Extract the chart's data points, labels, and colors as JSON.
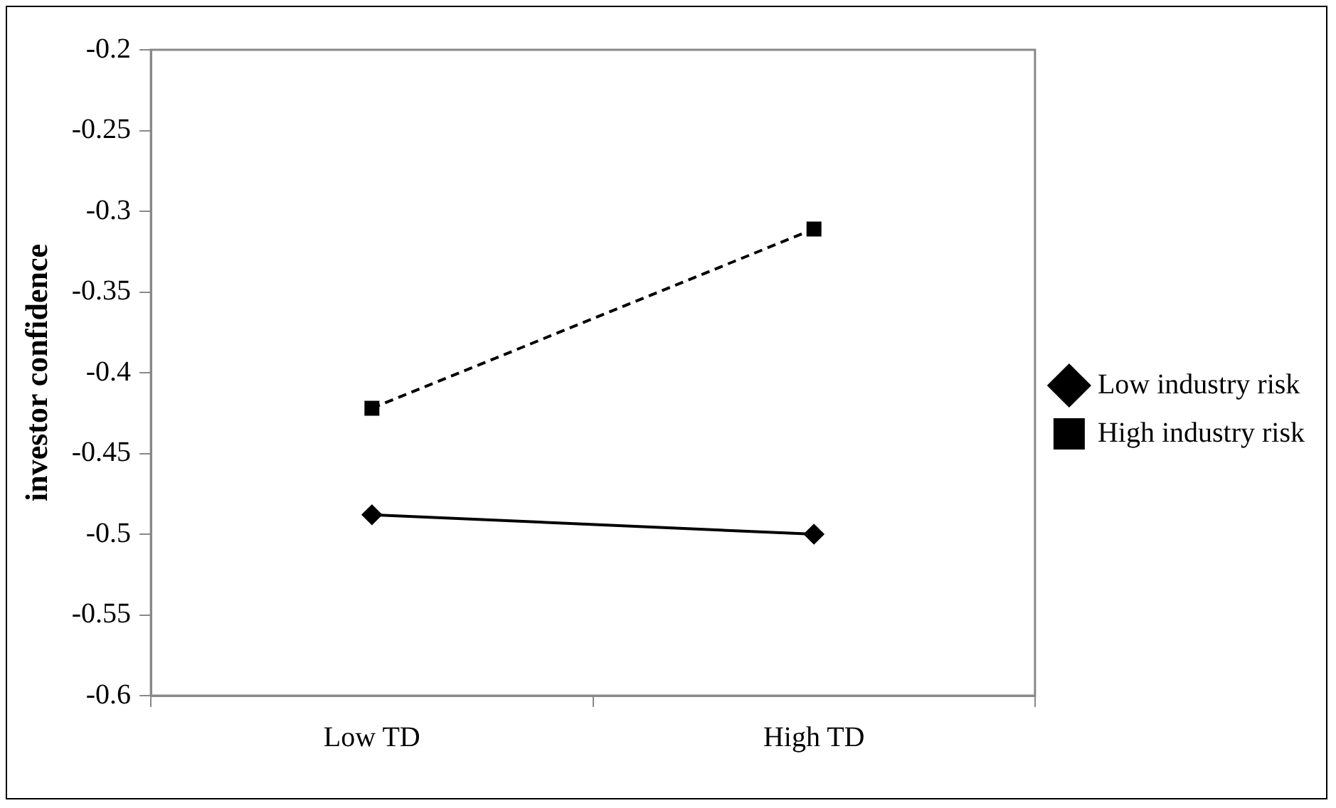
{
  "chart_data": {
    "type": "line",
    "ylabel": "investor confidence",
    "categories": [
      "Low TD",
      "High TD"
    ],
    "series": [
      {
        "name": "Low industry risk",
        "color": "#000000",
        "values": [
          -0.488,
          -0.5
        ],
        "marker": "diamond",
        "line_style": "solid"
      },
      {
        "name": "High industry risk",
        "color": "#000000",
        "values": [
          -0.422,
          -0.311
        ],
        "marker": "square",
        "line_style": "dashed"
      }
    ],
    "ylim": [
      -0.6,
      -0.2
    ],
    "yticks": [
      -0.6,
      -0.55,
      -0.5,
      -0.45,
      -0.4,
      -0.35,
      -0.3,
      -0.25,
      -0.2
    ],
    "grid": false,
    "legend": "right"
  }
}
